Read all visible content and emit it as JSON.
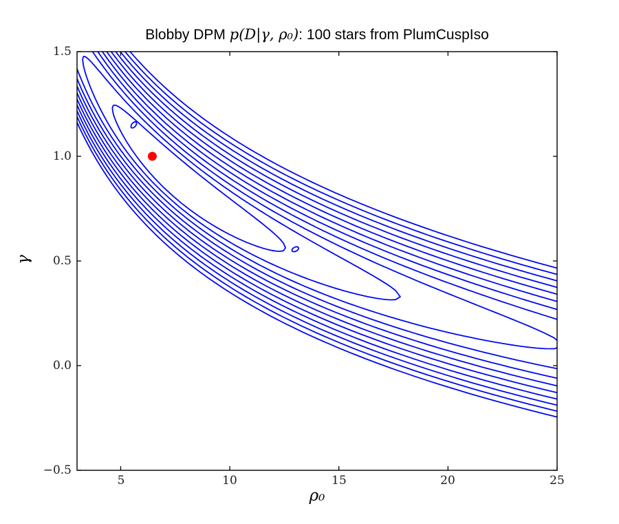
{
  "chart_data": {
    "type": "contour",
    "title": {
      "prefix": "Blobby DPM ",
      "math": "p(D|γ, ρ₀)",
      "suffix": ": 100 stars from PlumCuspIso"
    },
    "xlabel": "ρ₀",
    "ylabel": "γ",
    "xlim": [
      3,
      25
    ],
    "ylim": [
      -0.5,
      1.5
    ],
    "xticks": [
      5,
      10,
      15,
      20,
      25
    ],
    "xtick_labels": [
      "5",
      "10",
      "15",
      "20",
      "25"
    ],
    "yticks": [
      1.5,
      1.0,
      0.5,
      0.0,
      -0.5
    ],
    "ytick_labels": [
      "1.5",
      "1.0",
      "0.5",
      "0.0",
      "−0.5"
    ],
    "grid": false,
    "legend": null,
    "contour_color": "#0008f2",
    "axis_color": "#000000",
    "ridge": {
      "model": "gamma = a - b*ln(rho)",
      "a": 2.25,
      "b": 0.667
    },
    "levels": {
      "count": 11,
      "t_center": 2.03,
      "half_length_base": 0.5,
      "half_length_step": 0.35,
      "upper_halfwidth_base": 0.1,
      "upper_halfwidth_step": 0.028,
      "lower_halfwidth_base": 0.105,
      "lower_halfwidth_step": 0.026
    },
    "islands": [
      {
        "rho": 5.6,
        "gamma": 1.15,
        "angle_deg": -50
      },
      {
        "rho": 13.0,
        "gamma": 0.556,
        "angle_deg": -26
      }
    ],
    "marker": {
      "rho": 6.45,
      "gamma": 1.0,
      "color": "#ff0000",
      "radius_px": 6.5
    }
  }
}
